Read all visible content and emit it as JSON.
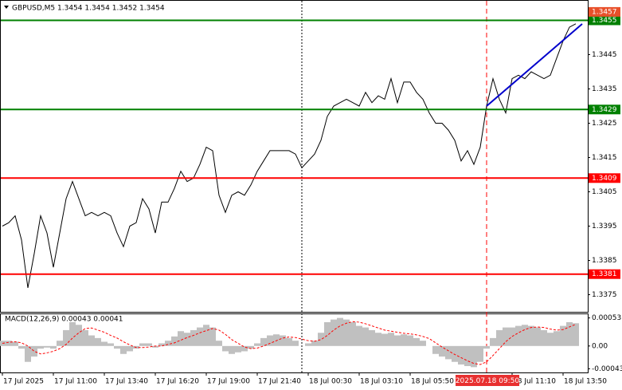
{
  "chart_data": [
    {
      "type": "line",
      "title": "GBPUSD,M5  1.3454 1.3454 1.3452 1.3454",
      "crosshair_label": "2025.07.18 09:50",
      "categories": [
        "17 Jul 2025",
        null,
        null,
        null,
        null,
        null,
        null,
        null,
        "17 Jul 11:00",
        null,
        null,
        null,
        null,
        null,
        null,
        null,
        "17 Jul 13:40",
        null,
        null,
        null,
        null,
        null,
        null,
        null,
        "17 Jul 16:20",
        null,
        null,
        null,
        null,
        null,
        null,
        null,
        "17 Jul 19:00",
        null,
        null,
        null,
        null,
        null,
        null,
        null,
        "17 Jul 21:40",
        null,
        null,
        null,
        null,
        null,
        null,
        null,
        "18 Jul 00:30",
        null,
        null,
        null,
        null,
        null,
        null,
        null,
        "18 Jul 03:10",
        null,
        null,
        null,
        null,
        null,
        null,
        null,
        "18 Jul 05:50",
        null,
        null,
        null,
        null,
        null,
        null,
        null,
        null,
        null,
        null,
        null,
        null,
        null,
        null,
        null,
        "18 Jul 11:10",
        null,
        null,
        null,
        null,
        null,
        null,
        null,
        "18 Jul 13:50",
        null,
        null
      ],
      "series": [
        {
          "color": "#000000",
          "values": [
            1.3395,
            1.3396,
            1.3398,
            1.3391,
            1.3377,
            1.3387,
            1.3398,
            1.3393,
            1.3383,
            1.3393,
            1.3403,
            1.3408,
            1.3403,
            1.3398,
            1.3399,
            1.3398,
            1.3399,
            1.3398,
            1.3393,
            1.3389,
            1.3395,
            1.3396,
            1.3403,
            1.34,
            1.3393,
            1.3402,
            1.3402,
            1.3406,
            1.3411,
            1.3408,
            1.3409,
            1.3413,
            1.3418,
            1.3417,
            1.3404,
            1.3399,
            1.3404,
            1.3405,
            1.3404,
            1.3407,
            1.3411,
            1.3414,
            1.3417,
            1.3417,
            1.3417,
            1.3417,
            1.3416,
            1.3412,
            1.3414,
            1.3416,
            1.342,
            1.3427,
            1.343,
            1.3431,
            1.3432,
            1.3431,
            1.343,
            1.3434,
            1.3431,
            1.3433,
            1.3432,
            1.3438,
            1.3431,
            1.3437,
            1.3437,
            1.3434,
            1.3432,
            1.3428,
            1.3425,
            1.3425,
            1.3423,
            1.342,
            1.3414,
            1.3417,
            1.3413,
            1.3418,
            1.343,
            1.3438,
            1.3432,
            1.3428,
            1.3438,
            1.3439,
            1.3438,
            1.344,
            1.3439,
            1.3438,
            1.3439,
            1.3444,
            1.3449,
            1.3453,
            1.3454
          ]
        }
      ],
      "ylim": [
        1.337,
        1.346
      ],
      "yticks": [
        1.3445,
        1.3435,
        1.3425,
        1.3415,
        1.3405,
        1.3395,
        1.3385,
        1.3375
      ],
      "levels": [
        {
          "value": 1.3455,
          "color": "#008000"
        },
        {
          "value": 1.3429,
          "color": "#008000"
        },
        {
          "value": 1.3409,
          "color": "#ff0000"
        },
        {
          "value": 1.3381,
          "color": "#ff0000"
        }
      ],
      "price_tag": {
        "value": 1.3457,
        "color": "#e8502a"
      }
    },
    {
      "type": "macd",
      "title": "MACD(12,26,9) 0.00043 0.00041",
      "series": [
        {
          "color": "#c0c0c0",
          "values": [
            0.0001,
            0.0001,
            8e-05,
            -5e-05,
            -0.0003,
            -0.0002,
            -5e-05,
            -3e-05,
            -5e-05,
            0.0001,
            0.0003,
            0.00045,
            0.0004,
            0.0003,
            0.0002,
            0.00015,
            8e-05,
            5e-05,
            -5e-05,
            -0.00015,
            -0.0001,
            -5e-05,
            5e-05,
            5e-05,
            -3e-05,
            5e-05,
            0.0001,
            0.00018,
            0.00028,
            0.00025,
            0.0003,
            0.00035,
            0.0004,
            0.00035,
            0.0001,
            -0.0001,
            -0.00015,
            -0.00012,
            -0.0001,
            -5e-05,
            5e-05,
            0.00015,
            0.0002,
            0.00022,
            0.0002,
            0.00015,
            0.0001,
            0,
            5e-05,
            0.0001,
            0.00025,
            0.00045,
            0.0005,
            0.00053,
            0.0005,
            0.00045,
            0.00038,
            0.00035,
            0.0003,
            0.00025,
            0.00023,
            0.00025,
            0.0002,
            0.00022,
            0.0002,
            0.00015,
            0.0001,
            0,
            -0.00015,
            -0.0002,
            -0.00025,
            -0.0003,
            -0.00035,
            -0.00038,
            -0.0004,
            -0.0003,
            -5e-05,
            0.00015,
            0.0003,
            0.00035,
            0.00035,
            0.00038,
            0.0004,
            0.00038,
            0.00035,
            0.0003,
            0.00025,
            0.00028,
            0.00038,
            0.00045,
            0.00043
          ]
        },
        {
          "color": "#ff0000",
          "values": [
            5e-05,
            7e-05,
            8e-05,
            6e-05,
            0,
            -0.0001,
            -0.00015,
            -0.00013,
            -0.0001,
            -5e-05,
            3e-05,
            0.00015,
            0.00025,
            0.00033,
            0.00034,
            0.0003,
            0.00026,
            0.0002,
            0.00015,
            8e-05,
            2e-05,
            -3e-05,
            -3e-05,
            -2e-05,
            0,
            0,
            3e-05,
            6e-05,
            0.00011,
            0.00016,
            0.0002,
            0.00025,
            0.00029,
            0.00033,
            0.0003,
            0.00022,
            0.00012,
            5e-05,
            -2e-05,
            -5e-05,
            -4e-05,
            0,
            5e-05,
            0.0001,
            0.00015,
            0.00017,
            0.00016,
            0.00013,
            0.0001,
            9e-05,
            0.00012,
            0.0002,
            0.0003,
            0.00038,
            0.00043,
            0.00046,
            0.00045,
            0.00042,
            0.00038,
            0.00034,
            0.0003,
            0.00028,
            0.00026,
            0.00024,
            0.00023,
            0.00021,
            0.00018,
            0.00014,
            6e-05,
            -2e-05,
            -9e-05,
            -0.00016,
            -0.00022,
            -0.00028,
            -0.00033,
            -0.00035,
            -0.0003,
            -0.00018,
            -5e-05,
            8e-05,
            0.00018,
            0.00025,
            0.00031,
            0.00035,
            0.00036,
            0.00035,
            0.00032,
            0.0003,
            0.00031,
            0.00036,
            0.00041
          ]
        }
      ],
      "ylim": [
        -0.0005,
        0.0006
      ],
      "yticks": [
        0.00053,
        {
          "value": 0,
          "label": "0.00"
        },
        -0.00043
      ]
    }
  ]
}
